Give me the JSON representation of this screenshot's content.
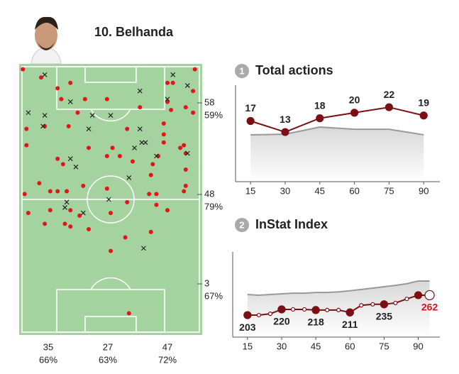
{
  "player": {
    "name": "10. Belhanda"
  },
  "pitch": {
    "successful": [
      [
        2,
        2
      ],
      [
        12,
        5
      ],
      [
        28,
        7
      ],
      [
        21,
        9
      ],
      [
        23,
        13
      ],
      [
        36,
        13
      ],
      [
        48,
        13
      ],
      [
        66,
        16
      ],
      [
        81,
        14
      ],
      [
        81,
        7
      ],
      [
        84,
        7
      ],
      [
        96,
        2
      ],
      [
        95,
        10
      ],
      [
        91,
        16
      ],
      [
        95,
        18
      ],
      [
        83,
        17
      ],
      [
        32,
        18
      ],
      [
        4,
        24
      ],
      [
        14,
        23
      ],
      [
        27,
        23
      ],
      [
        59,
        24
      ],
      [
        79,
        22
      ],
      [
        4,
        30
      ],
      [
        38,
        31
      ],
      [
        51,
        31
      ],
      [
        48,
        34
      ],
      [
        55,
        34
      ],
      [
        21,
        35
      ],
      [
        24,
        37
      ],
      [
        62,
        36
      ],
      [
        76,
        34
      ],
      [
        73,
        37
      ],
      [
        91,
        33
      ],
      [
        90,
        30
      ],
      [
        91,
        39
      ],
      [
        91,
        45
      ],
      [
        90,
        47
      ],
      [
        3,
        48
      ],
      [
        11,
        44
      ],
      [
        17,
        47
      ],
      [
        21,
        47
      ],
      [
        26,
        47
      ],
      [
        35,
        45
      ],
      [
        48,
        46
      ],
      [
        72,
        41
      ],
      [
        71,
        48
      ],
      [
        75,
        52
      ],
      [
        81,
        54
      ],
      [
        59,
        51
      ],
      [
        50,
        55
      ],
      [
        17,
        54
      ],
      [
        28,
        54
      ],
      [
        33,
        56
      ],
      [
        28,
        60
      ],
      [
        25,
        59
      ],
      [
        14,
        59
      ],
      [
        5,
        55
      ],
      [
        38,
        61
      ],
      [
        58,
        64
      ],
      [
        72,
        62
      ],
      [
        50,
        69
      ],
      [
        60,
        92
      ],
      [
        79,
        26
      ],
      [
        79,
        29
      ],
      [
        88,
        31
      ],
      [
        75,
        48
      ]
    ],
    "unsuccessful": [
      [
        14,
        4
      ],
      [
        84,
        4
      ],
      [
        92,
        8
      ],
      [
        28,
        14
      ],
      [
        66,
        10
      ],
      [
        81,
        13
      ],
      [
        5,
        18
      ],
      [
        14,
        19
      ],
      [
        40,
        19
      ],
      [
        50,
        19
      ],
      [
        13,
        23
      ],
      [
        66,
        24
      ],
      [
        38,
        24
      ],
      [
        67,
        29
      ],
      [
        69,
        29
      ],
      [
        63,
        31
      ],
      [
        28,
        35
      ],
      [
        31,
        38
      ],
      [
        60,
        42
      ],
      [
        75,
        34
      ],
      [
        92,
        33
      ],
      [
        26,
        51
      ],
      [
        25,
        53
      ],
      [
        35,
        55
      ],
      [
        49,
        50
      ],
      [
        68,
        68
      ]
    ],
    "zones_right": [
      {
        "count": 58,
        "pct": "59%"
      },
      {
        "count": 48,
        "pct": "79%"
      },
      {
        "count": 3,
        "pct": "67%"
      }
    ],
    "zones_bottom": [
      {
        "count": 35,
        "pct": "66%"
      },
      {
        "count": 27,
        "pct": "63%"
      },
      {
        "count": 47,
        "pct": "72%"
      }
    ]
  },
  "chart_data": [
    {
      "type": "line",
      "number": 1,
      "title": "Total actions",
      "xlim": [
        8.5,
        97
      ],
      "xticks": [
        15,
        30,
        45,
        60,
        75,
        90
      ],
      "ylim": [
        -5,
        30
      ],
      "label_position": "above",
      "series": [
        {
          "color": "#999999",
          "area": true,
          "x": [
            15,
            30,
            45,
            60,
            75,
            90
          ],
          "values": [
            12,
            12.2,
            14.8,
            14,
            14,
            12
          ]
        },
        {
          "color": "#7a1016",
          "data_labels": true,
          "x": [
            15,
            30,
            45,
            60,
            75,
            90
          ],
          "values": [
            17,
            13,
            18,
            20,
            22,
            19
          ]
        }
      ]
    },
    {
      "type": "line",
      "number": 2,
      "title": "InStat Index",
      "xlim": [
        8.5,
        99.5
      ],
      "xticks": [
        15,
        30,
        45,
        60,
        75,
        90
      ],
      "ylim": [
        138,
        390
      ],
      "label_position": "below",
      "series": [
        {
          "color": "#999999",
          "area": true,
          "x": [
            15,
            20,
            25,
            30,
            35,
            40,
            45,
            50,
            55,
            60,
            65,
            70,
            75,
            80,
            85,
            90,
            95
          ],
          "values": [
            264,
            262,
            264,
            266,
            268,
            268,
            270,
            270,
            272,
            275,
            279,
            283,
            287,
            291,
            296,
            304,
            304
          ]
        },
        {
          "color": "#7a1016",
          "points": true,
          "x": [
            15,
            20,
            25,
            30,
            35,
            40,
            45,
            50,
            55,
            60,
            65,
            70,
            75,
            80,
            85,
            90,
            95
          ],
          "values": [
            203,
            203,
            207,
            220,
            220,
            220,
            218,
            218,
            218,
            211,
            232,
            235,
            235,
            239,
            251,
            262,
            262
          ]
        },
        {
          "color": "#7a1016",
          "data_labels": true,
          "x": [
            15,
            30,
            45,
            60,
            75,
            95
          ],
          "values": [
            203,
            220,
            218,
            211,
            235,
            262
          ]
        }
      ]
    }
  ]
}
